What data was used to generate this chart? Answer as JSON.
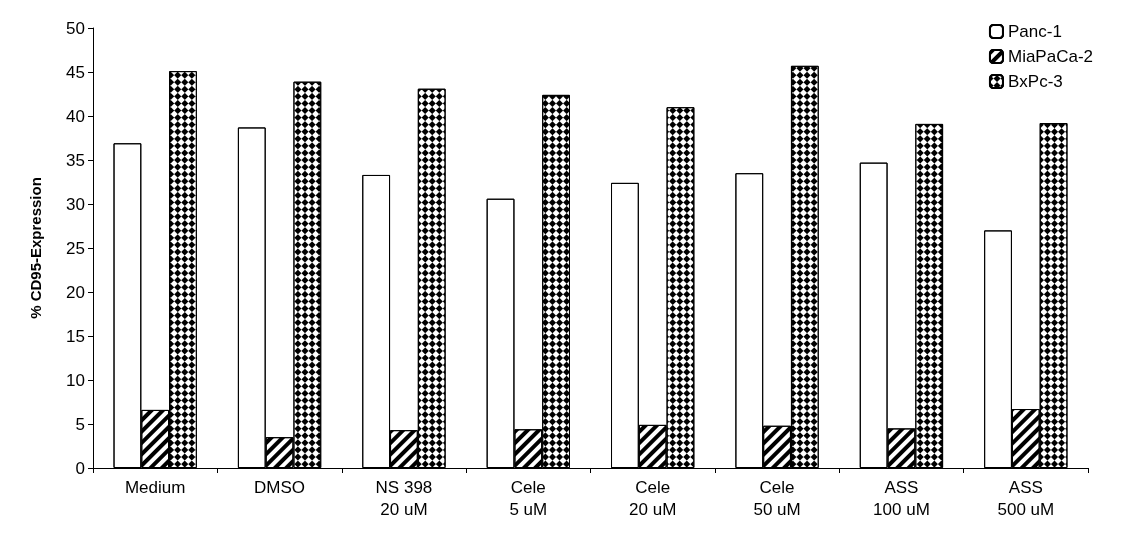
{
  "chart_data": {
    "type": "bar",
    "ylabel": "% CD95-Expression",
    "categories": [
      "Medium",
      "DMSO",
      "NS 398\n20 uM",
      "Cele\n5 uM",
      "Cele\n20 uM",
      "Cele\n50 uM",
      "ASS\n100 uM",
      "ASS\n500 uM"
    ],
    "series": [
      {
        "name": "Panc-1",
        "color": "#ffffff",
        "values": [
          36.9,
          38.7,
          33.3,
          30.6,
          32.4,
          33.5,
          34.7,
          27.0
        ]
      },
      {
        "name": "MiaPaCa-2",
        "color": "#ffffff",
        "values": [
          6.6,
          3.5,
          4.3,
          4.4,
          4.9,
          4.8,
          4.5,
          6.7
        ]
      },
      {
        "name": "BxPc-3",
        "color": "#ffffff",
        "values": [
          45.1,
          43.9,
          43.1,
          42.4,
          41.0,
          45.7,
          39.1,
          39.2
        ]
      }
    ],
    "ylim": [
      0,
      50
    ],
    "yticks": [
      0,
      5,
      10,
      15,
      20,
      25,
      30,
      35,
      40,
      45,
      50
    ],
    "grid": false,
    "legend": "top right"
  }
}
